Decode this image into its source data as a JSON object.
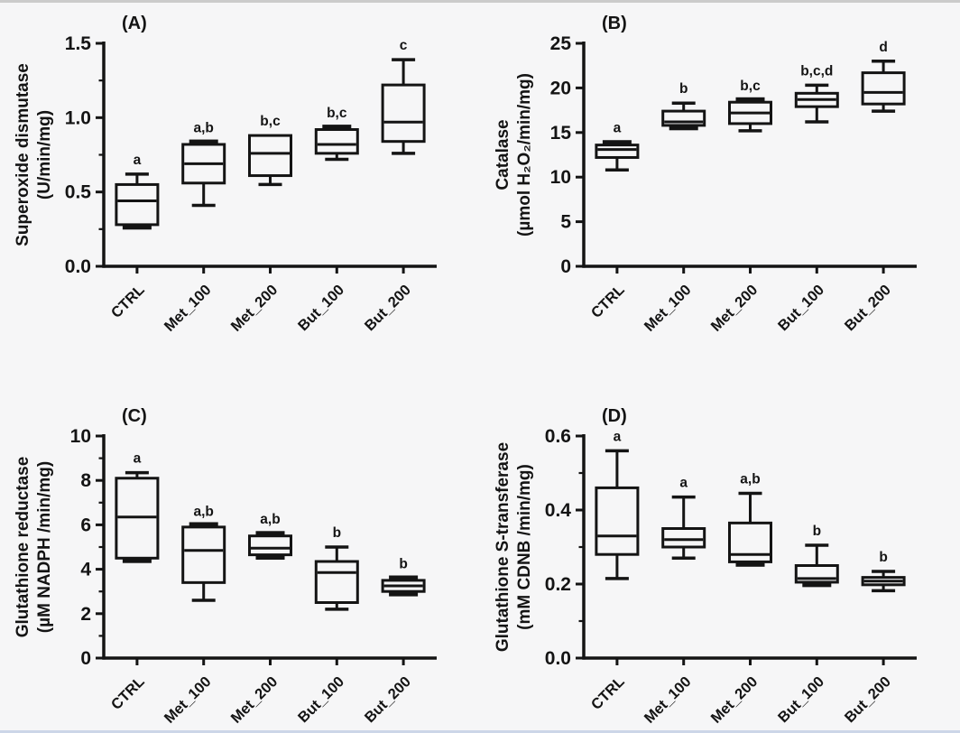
{
  "page": {
    "background": "#f6f6f7",
    "ink": "#141414",
    "top_strip_color": "#cbcbcb",
    "bottom_strip_color": "#ccd6e8"
  },
  "chart_data": [
    {
      "type": "box",
      "panel_label": "(A)",
      "ylabel_lines": [
        "Superoxide dismutase",
        "(U/min/mg)"
      ],
      "ylim": [
        0,
        1.5
      ],
      "yticks": [
        {
          "label": "0.0",
          "value": 0
        },
        {
          "label": "0.5",
          "value": 0.5
        },
        {
          "label": "1.0",
          "value": 1.0
        },
        {
          "label": "1.5",
          "value": 1.5
        }
      ],
      "minor_tick_values": [
        0.25,
        0.75,
        1.25
      ],
      "categories": [
        "CTRL",
        "Met_100",
        "Met_200",
        "But_100",
        "But_200"
      ],
      "boxes": [
        {
          "category": "CTRL",
          "min": 0.26,
          "q1": 0.28,
          "median": 0.44,
          "q3": 0.55,
          "max": 0.62,
          "sig": "a"
        },
        {
          "category": "Met_100",
          "min": 0.41,
          "q1": 0.56,
          "median": 0.69,
          "q3": 0.82,
          "max": 0.835,
          "sig": "a,b"
        },
        {
          "category": "Met_200",
          "min": 0.55,
          "q1": 0.61,
          "median": 0.76,
          "q3": 0.88,
          "max": 0.88,
          "sig": "b,c"
        },
        {
          "category": "But_100",
          "min": 0.72,
          "q1": 0.76,
          "median": 0.82,
          "q3": 0.92,
          "max": 0.935,
          "sig": "b,c"
        },
        {
          "category": "But_200",
          "min": 0.76,
          "q1": 0.84,
          "median": 0.97,
          "q3": 1.22,
          "max": 1.39,
          "sig": "c"
        }
      ]
    },
    {
      "type": "box",
      "panel_label": "(B)",
      "ylabel_lines": [
        "Catalase",
        "(µmol H₂O₂/min/mg)"
      ],
      "ylim": [
        0,
        25
      ],
      "yticks": [
        {
          "label": "0",
          "value": 0
        },
        {
          "label": "5",
          "value": 5
        },
        {
          "label": "10",
          "value": 10
        },
        {
          "label": "15",
          "value": 15
        },
        {
          "label": "20",
          "value": 20
        },
        {
          "label": "25",
          "value": 25
        }
      ],
      "minor_tick_values": [],
      "categories": [
        "CTRL",
        "Met_100",
        "Met_200",
        "But_100",
        "But_200"
      ],
      "boxes": [
        {
          "category": "CTRL",
          "min": 10.8,
          "q1": 12.2,
          "median": 13.1,
          "q3": 13.6,
          "max": 13.9,
          "sig": "a"
        },
        {
          "category": "Met_100",
          "min": 15.5,
          "q1": 15.8,
          "median": 16.2,
          "q3": 17.4,
          "max": 18.3,
          "sig": "b"
        },
        {
          "category": "Met_200",
          "min": 15.2,
          "q1": 16.0,
          "median": 17.2,
          "q3": 18.4,
          "max": 18.6,
          "sig": "b,c"
        },
        {
          "category": "But_100",
          "min": 16.2,
          "q1": 17.9,
          "median": 18.7,
          "q3": 19.4,
          "max": 20.3,
          "sig": "b,c,d"
        },
        {
          "category": "But_200",
          "min": 17.4,
          "q1": 18.2,
          "median": 19.5,
          "q3": 21.7,
          "max": 23.0,
          "sig": "d"
        }
      ]
    },
    {
      "type": "box",
      "panel_label": "(C)",
      "ylabel_lines": [
        "Glutathione reductase",
        "(µM NADPH /min/mg)"
      ],
      "ylim": [
        0,
        10
      ],
      "yticks": [
        {
          "label": "0",
          "value": 0
        },
        {
          "label": "2",
          "value": 2
        },
        {
          "label": "4",
          "value": 4
        },
        {
          "label": "6",
          "value": 6
        },
        {
          "label": "8",
          "value": 8
        },
        {
          "label": "10",
          "value": 10
        }
      ],
      "minor_tick_values": [
        1,
        3,
        5,
        7,
        9
      ],
      "categories": [
        "CTRL",
        "Met_100",
        "Met_200",
        "But_100",
        "But_200"
      ],
      "boxes": [
        {
          "category": "CTRL",
          "min": 4.4,
          "q1": 4.5,
          "median": 6.35,
          "q3": 8.1,
          "max": 8.35,
          "sig": "a"
        },
        {
          "category": "Met_100",
          "min": 2.6,
          "q1": 3.4,
          "median": 4.85,
          "q3": 5.9,
          "max": 5.95,
          "sig": "a,b"
        },
        {
          "category": "Met_200",
          "min": 4.5,
          "q1": 4.65,
          "median": 4.95,
          "q3": 5.5,
          "max": 5.6,
          "sig": "a,b"
        },
        {
          "category": "But_100",
          "min": 2.2,
          "q1": 2.5,
          "median": 3.85,
          "q3": 4.35,
          "max": 5.0,
          "sig": "b"
        },
        {
          "category": "But_200",
          "min": 2.9,
          "q1": 3.0,
          "median": 3.25,
          "q3": 3.5,
          "max": 3.6,
          "sig": "b"
        }
      ]
    },
    {
      "type": "box",
      "panel_label": "(D)",
      "ylabel_lines": [
        "Glutathione S-transferase",
        "(mM CDNB /min/mg)"
      ],
      "ylim": [
        0,
        0.6
      ],
      "yticks": [
        {
          "label": "0.0",
          "value": 0
        },
        {
          "label": "0.2",
          "value": 0.2
        },
        {
          "label": "0.4",
          "value": 0.4
        },
        {
          "label": "0.6",
          "value": 0.6
        }
      ],
      "minor_tick_values": [
        0.1,
        0.3,
        0.5
      ],
      "categories": [
        "CTRL",
        "Met_100",
        "Met_200",
        "But_100",
        "But_200"
      ],
      "boxes": [
        {
          "category": "CTRL",
          "min": 0.215,
          "q1": 0.28,
          "median": 0.33,
          "q3": 0.46,
          "max": 0.56,
          "sig": "a"
        },
        {
          "category": "Met_100",
          "min": 0.27,
          "q1": 0.3,
          "median": 0.32,
          "q3": 0.35,
          "max": 0.435,
          "sig": "a"
        },
        {
          "category": "Met_200",
          "min": 0.25,
          "q1": 0.26,
          "median": 0.28,
          "q3": 0.365,
          "max": 0.445,
          "sig": "a,b"
        },
        {
          "category": "But_100",
          "min": 0.2,
          "q1": 0.205,
          "median": 0.215,
          "q3": 0.25,
          "max": 0.305,
          "sig": "b"
        },
        {
          "category": "But_200",
          "min": 0.182,
          "q1": 0.198,
          "median": 0.208,
          "q3": 0.218,
          "max": 0.234,
          "sig": "b"
        }
      ]
    }
  ]
}
